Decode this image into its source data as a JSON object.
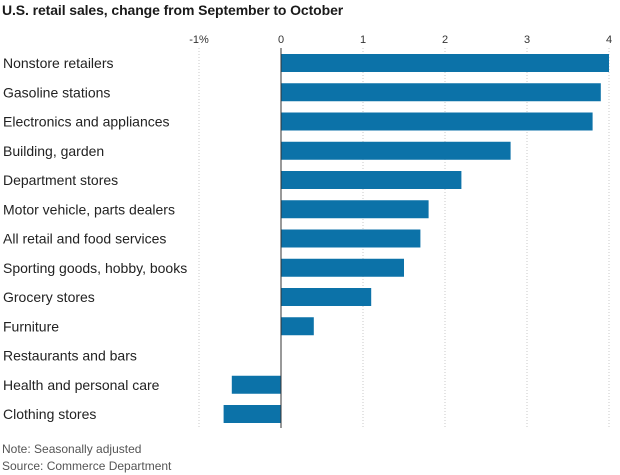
{
  "chart_data": {
    "type": "bar",
    "orientation": "horizontal",
    "title": "U.S. retail sales, change from September to October",
    "categories": [
      "Nonstore retailers",
      "Gasoline stations",
      "Electronics and appliances",
      "Building, garden",
      "Department stores",
      "Motor vehicle, parts dealers",
      "All retail and food services",
      "Sporting goods, hobby, books",
      "Grocery stores",
      "Furniture",
      "Restaurants and bars",
      "Health and personal care",
      "Clothing stores"
    ],
    "values": [
      4.0,
      3.9,
      3.8,
      2.8,
      2.2,
      1.8,
      1.7,
      1.5,
      1.1,
      0.4,
      0.0,
      -0.6,
      -0.7
    ],
    "xlim": [
      -1,
      4
    ],
    "xticks": [
      "-1%",
      "0",
      "1",
      "2",
      "3",
      "4"
    ],
    "xtick_values": [
      -1,
      0,
      1,
      2,
      3,
      4
    ],
    "grid": "vertical",
    "bar_color": "#0c72a8"
  },
  "footer": {
    "note": "Note: Seasonally adjusted",
    "source": "Source: Commerce Department"
  }
}
